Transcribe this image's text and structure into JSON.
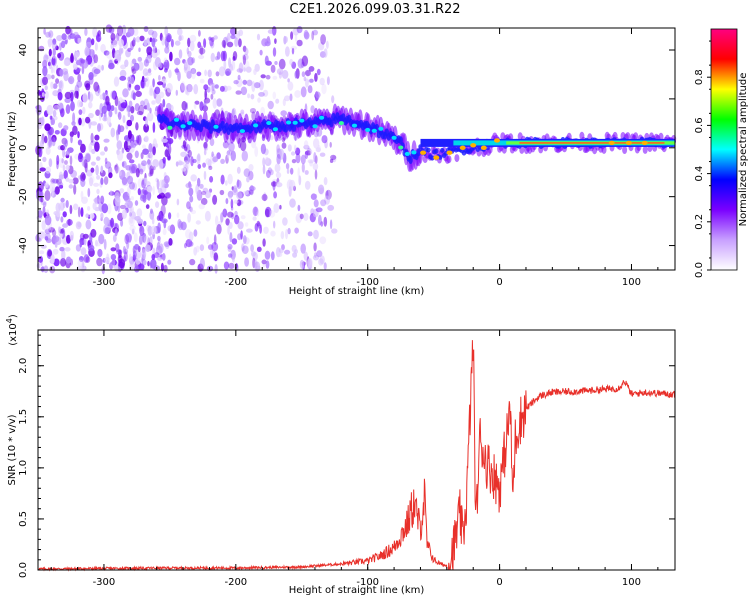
{
  "title": "C2E1.2026.099.03.31.R22",
  "chart_data": [
    {
      "type": "heatmap",
      "xlabel": "Height of straight line (km)",
      "ylabel": "Frequency (Hz)",
      "xlim": [
        -350,
        133
      ],
      "ylim": [
        -50,
        49
      ],
      "xticks": [
        -300,
        -200,
        -100,
        0,
        100
      ],
      "xtick_labels": [
        "-300",
        "-200",
        "-100",
        "0",
        "100"
      ],
      "yticks": [
        -40,
        -20,
        0,
        20,
        40
      ],
      "ytick_labels": [
        "-40",
        "-20",
        "0",
        "20",
        "40"
      ],
      "ridge": {
        "x": [
          -258,
          -250,
          -230,
          -200,
          -170,
          -140,
          -120,
          -100,
          -85,
          -75,
          -68,
          -60,
          -50,
          -40,
          -30,
          -20,
          -10,
          0,
          20,
          50,
          80,
          100,
          133
        ],
        "y": [
          12,
          10,
          9,
          8,
          9,
          10,
          12,
          9,
          5,
          2,
          -4,
          -1,
          -3,
          -2,
          -1,
          0,
          1,
          2,
          2,
          2,
          2,
          2,
          2
        ]
      },
      "colorbar": {
        "label": "Normalized spectral amplitude",
        "range": [
          0,
          1
        ],
        "ticks": [
          0.0,
          0.2,
          0.4,
          0.6,
          0.8
        ],
        "tick_labels": [
          "0.0",
          "0.2",
          "0.4",
          "0.6",
          "0.8"
        ],
        "colors": [
          "#ffffff",
          "#c8a0ff",
          "#7a00ff",
          "#0000ff",
          "#00ffff",
          "#00ff00",
          "#ffff00",
          "#ff0000",
          "#ff0080"
        ]
      }
    },
    {
      "type": "line",
      "xlabel": "Height of straight line (km)",
      "ylabel": "SNR (10 * v/v)",
      "y_multiplier": "(x10",
      "y_multiplier_exp": "4",
      "y_multiplier_close": ")",
      "xlim": [
        -350,
        133
      ],
      "ylim": [
        0,
        2.35
      ],
      "xticks": [
        -300,
        -200,
        -100,
        0,
        100
      ],
      "xtick_labels": [
        "-300",
        "-200",
        "-100",
        "0",
        "100"
      ],
      "yticks": [
        0.0,
        0.5,
        1.0,
        1.5,
        2.0
      ],
      "ytick_labels": [
        "0.0",
        "0.5",
        "1.0",
        "1.5",
        "2.0"
      ],
      "color": "#e8302a",
      "series": [
        {
          "name": "SNR",
          "x": [
            -350,
            -300,
            -250,
            -200,
            -150,
            -120,
            -100,
            -90,
            -80,
            -70,
            -65,
            -60,
            -57,
            -55,
            -50,
            -45,
            -40,
            -35,
            -30,
            -28,
            -25,
            -22,
            -20,
            -18,
            -15,
            -10,
            -5,
            0,
            5,
            8,
            10,
            12,
            15,
            20,
            30,
            40,
            60,
            80,
            90,
            95,
            100,
            110,
            120,
            133
          ],
          "y": [
            0.01,
            0.015,
            0.02,
            0.02,
            0.03,
            0.06,
            0.09,
            0.14,
            0.22,
            0.45,
            0.65,
            0.4,
            0.72,
            0.25,
            0.1,
            0.06,
            0.04,
            0.2,
            0.55,
            0.3,
            0.7,
            1.65,
            2.3,
            0.4,
            1.3,
            1.05,
            0.95,
            0.8,
            1.25,
            1.6,
            0.7,
            1.3,
            1.45,
            1.58,
            1.7,
            1.74,
            1.75,
            1.77,
            1.78,
            1.85,
            1.72,
            1.74,
            1.73,
            1.72
          ]
        }
      ]
    }
  ]
}
